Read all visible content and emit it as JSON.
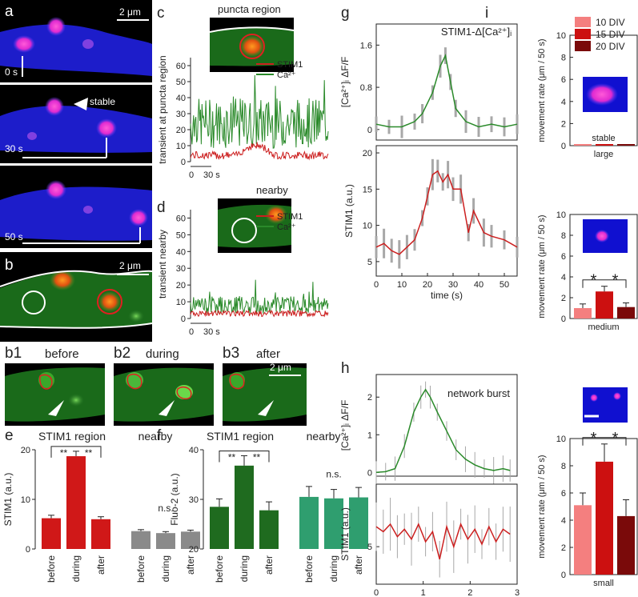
{
  "colors": {
    "stim1": "#cc1f1f",
    "ca": "#2a8a2a",
    "stim1_bar": "#d01818",
    "fluo_bar": "#1f6b1f",
    "nearby_stim1_bar": "#8a8a8a",
    "nearby_fluo_bar": "#2f9e6f",
    "div10": "#f47f7f",
    "div15": "#cc1010",
    "div20": "#7a0a0a",
    "err": "#a8a8a8"
  },
  "panel_a": {
    "label": "a",
    "scale": "2 μm",
    "time_scale": "0 s",
    "t1": "30 s",
    "t2": "50 s",
    "stable": "stable"
  },
  "panel_b": {
    "label": "b",
    "scale": "2 μm"
  },
  "panel_b_sub": {
    "b1": "b1",
    "b1_t": "before",
    "b2": "b2",
    "b2_t": "during",
    "b3": "b3",
    "b3_t": "after",
    "scale": "2 μm"
  },
  "chart_data": [
    {
      "id": "c",
      "type": "line",
      "title": "puncta region",
      "ylabel": "transient at puncta region",
      "ylim": [
        0,
        65
      ],
      "yticks": [
        "0",
        "10",
        "20",
        "30",
        "40",
        "50",
        "60"
      ],
      "xscale": "0",
      "xscale_end": "30 s",
      "legend": [
        "STIM1",
        "Ca²⁺"
      ],
      "series": [
        {
          "name": "STIM1",
          "level": 4
        },
        {
          "name": "Ca²⁺",
          "level": 24
        }
      ]
    },
    {
      "id": "d",
      "type": "line",
      "title": "nearby",
      "ylabel": "transient nearby",
      "ylim": [
        0,
        65
      ],
      "yticks": [
        "0",
        "10",
        "20",
        "30",
        "40",
        "50",
        "60"
      ],
      "xscale": "0",
      "xscale_end": "30 s",
      "legend": [
        "STIM1",
        "Ca²⁺"
      ],
      "series": [
        {
          "name": "STIM1",
          "level": 3
        },
        {
          "name": "Ca²⁺",
          "level": 8
        }
      ]
    },
    {
      "id": "e",
      "type": "bar",
      "title_left": "STIM1 region",
      "title_right": "nearby",
      "ylabel": "STIM1 (a.u.)",
      "ylim": [
        0,
        20
      ],
      "yticks": [
        "0",
        "10",
        "20"
      ],
      "categories": [
        "before",
        "during",
        "after",
        "before",
        "during",
        "after"
      ],
      "values": [
        6.2,
        18.7,
        6.0,
        3.6,
        3.2,
        3.5
      ],
      "errors": [
        0.6,
        1.0,
        0.5,
        0.3,
        0.3,
        0.3
      ],
      "sig": [
        "**",
        "**"
      ],
      "ns": "n.s."
    },
    {
      "id": "f",
      "type": "bar",
      "title_left": "STIM1 region",
      "title_right": "nearby",
      "ylabel": "Fluo-2 (a.u.)",
      "ylim": [
        20,
        40
      ],
      "yticks": [
        "20",
        "30",
        "40"
      ],
      "categories": [
        "before",
        "during",
        "after",
        "before",
        "during",
        "after"
      ],
      "values": [
        28.5,
        36.8,
        27.8,
        30.5,
        30.2,
        30.4
      ],
      "errors": [
        1.6,
        2.0,
        1.7,
        2.1,
        1.8,
        2.0
      ],
      "sig": [
        "**",
        "**"
      ],
      "ns": "n.s."
    },
    {
      "id": "g_top",
      "type": "line",
      "title": "STIM1-Δ[Ca²⁺]ᵢ",
      "ylabel": "[Ca²⁺]ᵢ ΔF/F",
      "ylim": [
        -0.2,
        2.0
      ],
      "yticks": [
        "0",
        "0.8",
        "1.6"
      ],
      "x": [
        0,
        5,
        10,
        15,
        18,
        22,
        25,
        27,
        29,
        31,
        35,
        40,
        45,
        50,
        55
      ],
      "y": [
        0.1,
        0.05,
        0.05,
        0.15,
        0.3,
        0.7,
        1.2,
        1.4,
        0.9,
        0.4,
        0.15,
        0.05,
        0.1,
        0.05,
        0.1
      ]
    },
    {
      "id": "g_bot",
      "type": "line",
      "ylabel": "STIM1 (a.u.)",
      "xlabel": "time (s)",
      "ylim": [
        3,
        21
      ],
      "yticks": [
        "5",
        "10",
        "15",
        "20"
      ],
      "xticks": [
        "0",
        "10",
        "20",
        "30",
        "40",
        "50"
      ],
      "x": [
        0,
        3,
        6,
        9,
        12,
        15,
        18,
        20,
        22,
        24,
        26,
        28,
        30,
        33,
        36,
        38,
        42,
        45,
        50,
        55
      ],
      "y": [
        7,
        7.5,
        6.5,
        6,
        7,
        8,
        11,
        14,
        17,
        17.5,
        16,
        17,
        15,
        15,
        9,
        12,
        9,
        8.5,
        8,
        7
      ]
    },
    {
      "id": "h_top",
      "type": "line",
      "title": "network burst",
      "ylabel": "[Ca²⁺]ᵢ ΔF/F",
      "ylim": [
        -0.1,
        2.6
      ],
      "yticks": [
        "0",
        "1",
        "2"
      ],
      "x": [
        0,
        0.2,
        0.4,
        0.6,
        0.8,
        0.95,
        1.05,
        1.15,
        1.3,
        1.5,
        1.7,
        1.9,
        2.1,
        2.3,
        2.5,
        2.7,
        2.85
      ],
      "y": [
        0,
        0.02,
        0.1,
        0.7,
        1.6,
        2.0,
        2.2,
        2.0,
        1.6,
        1.1,
        0.6,
        0.35,
        0.2,
        0.1,
        0.05,
        0.1,
        0.05
      ]
    },
    {
      "id": "h_bot",
      "type": "line",
      "ylabel": "STIM1 (a.u.)",
      "xlabel": "time (s)",
      "ylim": [
        3.5,
        7.5
      ],
      "yticks": [
        "5"
      ],
      "xticks": [
        "0",
        "1",
        "2",
        "3"
      ],
      "x": [
        0,
        0.15,
        0.3,
        0.45,
        0.6,
        0.75,
        0.9,
        1.05,
        1.2,
        1.35,
        1.5,
        1.65,
        1.8,
        1.95,
        2.1,
        2.25,
        2.4,
        2.55,
        2.7,
        2.85
      ],
      "y": [
        5.8,
        5.6,
        5.9,
        5.4,
        5.7,
        5.3,
        5.9,
        5.2,
        5.6,
        4.5,
        5.8,
        5.0,
        5.9,
        5.3,
        5.7,
        5.1,
        5.8,
        5.2,
        5.7,
        5.5
      ]
    },
    {
      "id": "i_large",
      "type": "bar",
      "legend": [
        "10 DIV",
        "15 DIV",
        "20 DIV"
      ],
      "ylabel": "movement rate (μm / 50 s)",
      "ylim": [
        0,
        10
      ],
      "yticks": [
        "0",
        "2",
        "4",
        "6",
        "8",
        "10"
      ],
      "values": [
        0.05,
        0.05,
        0.05
      ],
      "note": "stable",
      "xlabel": "large"
    },
    {
      "id": "i_medium",
      "type": "bar",
      "ylabel": "movement rate (μm / 50 s)",
      "ylim": [
        0,
        10
      ],
      "yticks": [
        "0",
        "2",
        "4",
        "6",
        "8",
        "10"
      ],
      "values": [
        1.0,
        2.6,
        1.1
      ],
      "errors": [
        0.4,
        0.5,
        0.4
      ],
      "sig": [
        "*",
        "*"
      ],
      "xlabel": "medium"
    },
    {
      "id": "i_small",
      "type": "bar",
      "ylabel": "movement rate (μm / 50 s)",
      "ylim": [
        0,
        10
      ],
      "yticks": [
        "0",
        "2",
        "4",
        "6",
        "8",
        "10"
      ],
      "values": [
        5.1,
        8.3,
        4.3
      ],
      "errors": [
        0.9,
        1.3,
        1.2
      ],
      "sig": [
        "*",
        "*"
      ],
      "xlabel": "small"
    }
  ],
  "labels": {
    "c": "c",
    "d": "d",
    "e": "e",
    "f": "f",
    "g": "g",
    "h": "h",
    "i": "i"
  }
}
